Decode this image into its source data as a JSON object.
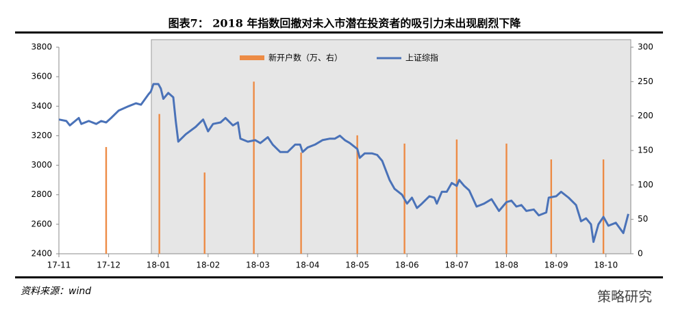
{
  "chart_data": {
    "type": "bar",
    "title": "图表7：  2018 年指数回撤对未入市潜在投资者的吸引力未出现剧烈下降",
    "xlim": [
      0,
      11.5
    ],
    "xticks": [
      {
        "value": 0,
        "label": "17-11"
      },
      {
        "value": 1,
        "label": "17-12"
      },
      {
        "value": 2,
        "label": "18-01"
      },
      {
        "value": 3,
        "label": "18-02"
      },
      {
        "value": 4,
        "label": "18-03"
      },
      {
        "value": 5,
        "label": "18-04"
      },
      {
        "value": 6,
        "label": "18-05"
      },
      {
        "value": 7,
        "label": "18-06"
      },
      {
        "value": 8,
        "label": "18-07"
      },
      {
        "value": 9,
        "label": "18-08"
      },
      {
        "value": 10,
        "label": "18-09"
      },
      {
        "value": 11,
        "label": "18-10"
      }
    ],
    "ylim": [
      2400,
      3800
    ],
    "yticks": [
      2400,
      2600,
      2800,
      3000,
      3200,
      3400,
      3600,
      3800
    ],
    "y2lim": [
      0,
      300
    ],
    "y2ticks": [
      0,
      50,
      100,
      150,
      200,
      250,
      300
    ],
    "series": [
      {
        "name": "新开户数（万、右）",
        "type": "bar",
        "axis": "y2",
        "color": "#ed8b45",
        "x": [
          0.95,
          2.02,
          2.93,
          3.92,
          4.87,
          6.0,
          6.95,
          8.0,
          9.0,
          9.9,
          10.95
        ],
        "values": [
          155,
          203,
          118,
          250,
          147,
          172,
          160,
          166,
          160,
          137,
          137
        ]
      },
      {
        "name": "上证综指",
        "type": "line",
        "color": "#4a72b8",
        "x": [
          0,
          0.15,
          0.22,
          0.4,
          0.45,
          0.6,
          0.75,
          0.85,
          0.95,
          1.05,
          1.2,
          1.4,
          1.55,
          1.65,
          1.8,
          1.85,
          1.9,
          2.0,
          2.05,
          2.1,
          2.2,
          2.3,
          2.35,
          2.4,
          2.55,
          2.75,
          2.9,
          3.0,
          3.1,
          3.25,
          3.35,
          3.5,
          3.6,
          3.65,
          3.8,
          3.95,
          4.05,
          4.2,
          4.3,
          4.45,
          4.6,
          4.75,
          4.85,
          4.9,
          5.0,
          5.15,
          5.3,
          5.45,
          5.55,
          5.65,
          5.75,
          5.85,
          6.0,
          6.05,
          6.15,
          6.3,
          6.4,
          6.5,
          6.65,
          6.75,
          6.9,
          7.0,
          7.1,
          7.2,
          7.3,
          7.45,
          7.55,
          7.6,
          7.7,
          7.8,
          7.9,
          8.0,
          8.05,
          8.15,
          8.25,
          8.4,
          8.55,
          8.7,
          8.85,
          9.0,
          9.1,
          9.2,
          9.3,
          9.4,
          9.55,
          9.65,
          9.8,
          9.85,
          10.0,
          10.1,
          10.25,
          10.4,
          10.5,
          10.6,
          10.7,
          10.75,
          10.85,
          10.95,
          11.05,
          11.2,
          11.35,
          11.45
        ],
        "values": [
          3310,
          3300,
          3270,
          3320,
          3280,
          3300,
          3280,
          3300,
          3290,
          3320,
          3370,
          3400,
          3420,
          3410,
          3480,
          3500,
          3550,
          3550,
          3520,
          3450,
          3490,
          3460,
          3300,
          3160,
          3210,
          3260,
          3310,
          3230,
          3280,
          3290,
          3320,
          3270,
          3290,
          3180,
          3160,
          3170,
          3150,
          3190,
          3140,
          3090,
          3090,
          3140,
          3140,
          3090,
          3120,
          3140,
          3170,
          3180,
          3180,
          3200,
          3170,
          3150,
          3110,
          3050,
          3080,
          3080,
          3070,
          3030,
          2900,
          2840,
          2800,
          2740,
          2780,
          2710,
          2740,
          2790,
          2780,
          2740,
          2820,
          2820,
          2880,
          2860,
          2900,
          2860,
          2830,
          2720,
          2740,
          2770,
          2690,
          2750,
          2760,
          2720,
          2730,
          2690,
          2700,
          2660,
          2680,
          2780,
          2790,
          2820,
          2780,
          2730,
          2620,
          2640,
          2600,
          2480,
          2600,
          2650,
          2590,
          2610,
          2540,
          2670
        ]
      }
    ]
  },
  "footer": {
    "source": "资料来源：wind",
    "watermark": "策略研究"
  }
}
